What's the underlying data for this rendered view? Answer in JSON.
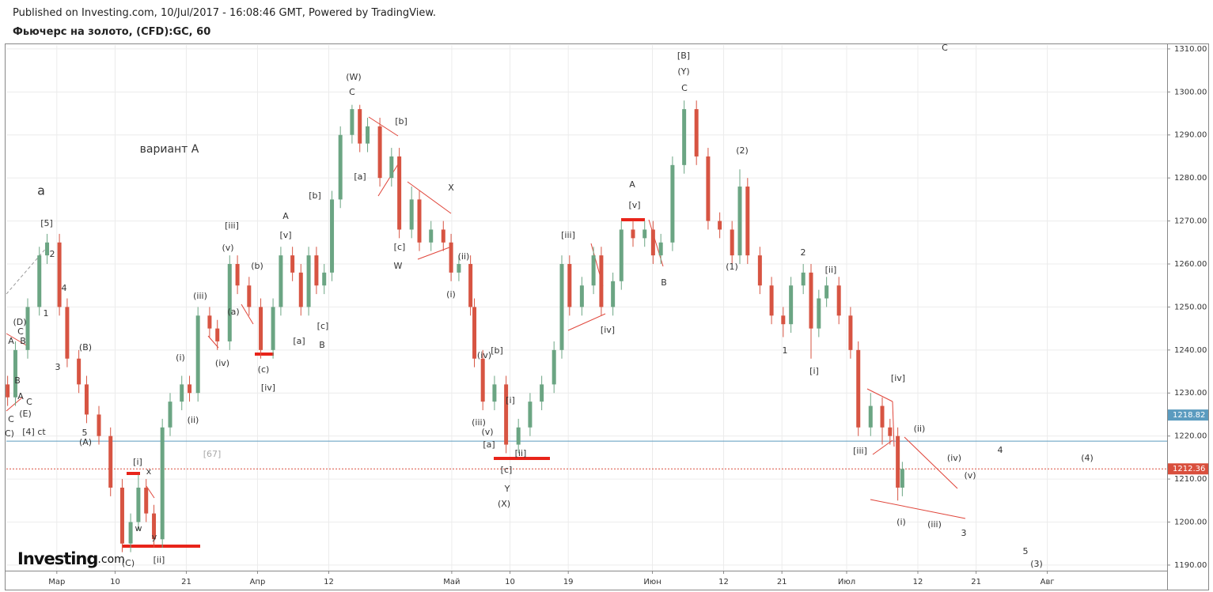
{
  "header": {
    "published": "Published on Investing.com, 10/Jul/2017 - 16:08:46 GMT, Powered by TradingView.",
    "symbol": "Фьючерс на золото, (CFD):GC, 60"
  },
  "logo": {
    "main": "Investing",
    "suffix": ".com"
  },
  "chart_data": {
    "type": "candlestick",
    "up_color": "#6ba583",
    "down_color": "#d75442",
    "grid": true,
    "xlim": [
      -7.8,
      171.5
    ],
    "xticks": [
      {
        "value": 0,
        "label": "Мар"
      },
      {
        "value": 9,
        "label": "10"
      },
      {
        "value": 20,
        "label": "21"
      },
      {
        "value": 31,
        "label": "Апр"
      },
      {
        "value": 42,
        "label": "12"
      },
      {
        "value": 61,
        "label": "Май"
      },
      {
        "value": 70,
        "label": "10"
      },
      {
        "value": 79,
        "label": "19"
      },
      {
        "value": 92,
        "label": "Июн"
      },
      {
        "value": 103,
        "label": "12"
      },
      {
        "value": 112,
        "label": "21"
      },
      {
        "value": 122,
        "label": "Июл"
      },
      {
        "value": 133,
        "label": "12"
      },
      {
        "value": 142,
        "label": "21"
      },
      {
        "value": 153,
        "label": "Авг"
      }
    ],
    "ylim": [
      1188.7,
      1310.9
    ],
    "yticks": [
      {
        "value": 1190,
        "label": "1190.00"
      },
      {
        "value": 1200,
        "label": "1200.00"
      },
      {
        "value": 1210,
        "label": "1210.00"
      },
      {
        "value": 1220,
        "label": "1220.00"
      },
      {
        "value": 1230,
        "label": "1230.00"
      },
      {
        "value": 1240,
        "label": "1240.00"
      },
      {
        "value": 1250,
        "label": "1250.00"
      },
      {
        "value": 1260,
        "label": "1260.00"
      },
      {
        "value": 1270,
        "label": "1270.00"
      },
      {
        "value": 1280,
        "label": "1280.00"
      },
      {
        "value": 1290,
        "label": "1290.00"
      },
      {
        "value": 1300,
        "label": "1300.00"
      },
      {
        "value": 1310,
        "label": "1310.00"
      }
    ],
    "x": [
      -7.6,
      -6.4,
      -4.5,
      -2.7,
      -1.5,
      0.4,
      1.6,
      3.4,
      4.6,
      6.5,
      8.3,
      10.1,
      11.4,
      12.6,
      13.8,
      15.0,
      16.3,
      17.5,
      19.3,
      20.5,
      21.8,
      23.6,
      24.8,
      26.7,
      27.9,
      29.7,
      31.5,
      33.4,
      34.6,
      36.4,
      37.7,
      38.9,
      40.1,
      41.3,
      42.5,
      43.8,
      45.6,
      46.8,
      48.0,
      49.9,
      51.7,
      52.9,
      54.8,
      56.0,
      57.8,
      59.7,
      60.9,
      62.1,
      63.9,
      64.5,
      65.8,
      67.6,
      69.4,
      71.3,
      73.1,
      74.9,
      76.8,
      78.0,
      79.2,
      81.1,
      82.9,
      84.1,
      85.9,
      87.2,
      89.0,
      90.8,
      92.1,
      93.3,
      95.1,
      96.9,
      98.8,
      100.6,
      102.4,
      104.3,
      105.5,
      106.7,
      108.6,
      110.4,
      112.2,
      113.4,
      115.3,
      116.5,
      117.7,
      118.9,
      120.8,
      122.6,
      123.8,
      125.7,
      127.5,
      128.7,
      129.9,
      130.6
    ],
    "open": [
      1232,
      1229,
      1240,
      1250,
      1262,
      1265,
      1250,
      1238,
      1232,
      1225,
      1220,
      1208,
      1195,
      1200,
      1208,
      1202,
      1196,
      1222,
      1228,
      1232,
      1230,
      1248,
      1245,
      1242,
      1260,
      1255,
      1250,
      1240,
      1250,
      1262,
      1258,
      1250,
      1262,
      1255,
      1258,
      1275,
      1290,
      1296,
      1288,
      1292,
      1280,
      1285,
      1268,
      1275,
      1265,
      1268,
      1265,
      1258,
      1260,
      1250,
      1238,
      1228,
      1232,
      1218,
      1222,
      1228,
      1232,
      1240,
      1260,
      1250,
      1255,
      1262,
      1250,
      1256,
      1268,
      1266,
      1268,
      1262,
      1265,
      1283,
      1296,
      1285,
      1270,
      1268,
      1262,
      1278,
      1262,
      1255,
      1248,
      1246,
      1255,
      1258,
      1245,
      1252,
      1255,
      1248,
      1240,
      1222,
      1227,
      1222,
      1220,
      1208
    ],
    "high": [
      1234,
      1242,
      1252,
      1264,
      1267,
      1267,
      1252,
      1240,
      1234,
      1227,
      1222,
      1210,
      1202,
      1211,
      1210,
      1204,
      1224,
      1230,
      1234,
      1234,
      1250,
      1250,
      1247,
      1262,
      1262,
      1257,
      1252,
      1252,
      1264,
      1264,
      1260,
      1264,
      1264,
      1260,
      1277,
      1292,
      1297,
      1297,
      1294,
      1294,
      1287,
      1287,
      1278,
      1277,
      1270,
      1270,
      1267,
      1262,
      1262,
      1252,
      1240,
      1234,
      1234,
      1224,
      1230,
      1234,
      1242,
      1262,
      1262,
      1257,
      1264,
      1264,
      1258,
      1270,
      1270,
      1270,
      1270,
      1267,
      1285,
      1298,
      1298,
      1287,
      1272,
      1270,
      1282,
      1280,
      1264,
      1257,
      1250,
      1257,
      1260,
      1260,
      1254,
      1257,
      1257,
      1250,
      1242,
      1230,
      1229,
      1224,
      1222,
      1214
    ],
    "low": [
      1227,
      1227,
      1238,
      1248,
      1260,
      1248,
      1236,
      1230,
      1223,
      1218,
      1206,
      1193,
      1193,
      1198,
      1200,
      1194,
      1194,
      1220,
      1226,
      1228,
      1228,
      1243,
      1240,
      1240,
      1253,
      1248,
      1238,
      1238,
      1248,
      1256,
      1248,
      1248,
      1253,
      1253,
      1256,
      1273,
      1288,
      1286,
      1286,
      1278,
      1278,
      1266,
      1266,
      1263,
      1263,
      1263,
      1256,
      1256,
      1248,
      1236,
      1226,
      1226,
      1216,
      1216,
      1220,
      1226,
      1230,
      1238,
      1248,
      1248,
      1253,
      1248,
      1248,
      1254,
      1264,
      1264,
      1260,
      1260,
      1263,
      1281,
      1283,
      1268,
      1266,
      1260,
      1260,
      1260,
      1253,
      1246,
      1243,
      1244,
      1253,
      1238,
      1243,
      1250,
      1246,
      1238,
      1220,
      1220,
      1218,
      1218,
      1205,
      1206
    ],
    "close": [
      1229,
      1240,
      1250,
      1262,
      1265,
      1250,
      1238,
      1232,
      1225,
      1220,
      1208,
      1195,
      1200,
      1208,
      1202,
      1196,
      1222,
      1228,
      1232,
      1230,
      1248,
      1245,
      1242,
      1260,
      1255,
      1250,
      1240,
      1250,
      1262,
      1258,
      1250,
      1262,
      1255,
      1258,
      1275,
      1290,
      1296,
      1288,
      1292,
      1280,
      1285,
      1268,
      1275,
      1265,
      1268,
      1265,
      1258,
      1260,
      1250,
      1238,
      1228,
      1232,
      1218,
      1222,
      1228,
      1232,
      1240,
      1260,
      1250,
      1255,
      1262,
      1250,
      1256,
      1268,
      1266,
      1268,
      1262,
      1265,
      1283,
      1296,
      1285,
      1270,
      1268,
      1262,
      1278,
      1262,
      1255,
      1248,
      1246,
      1255,
      1258,
      1245,
      1252,
      1255,
      1248,
      1240,
      1222,
      1227,
      1222,
      1220,
      1208,
      1212.36
    ],
    "price_lines": [
      {
        "value": 1218.82,
        "label": "1218.82",
        "color": "#5b9bbf"
      },
      {
        "value": 1212.36,
        "label": "1212.36",
        "color": "#d94f3d"
      }
    ],
    "annotations": [
      "[5]",
      "2",
      "4",
      "1",
      "3",
      "(B)",
      "5",
      "(A)",
      "(D)",
      "C",
      "A",
      "B",
      "B",
      "A",
      "C",
      "(E)",
      "C",
      "C)",
      "[4] ct",
      "a",
      "вариант А",
      "[i]",
      "x",
      "w",
      "y",
      "(C)",
      "[ii]",
      "[67]",
      "(i)",
      "(ii)",
      "(iii)",
      "[iii]",
      "(v)",
      "(a)",
      "(b)",
      "(iv)",
      "(c)",
      "[iv]",
      "A",
      "[v]",
      "[b]",
      "[c]",
      "[a]",
      "B",
      "(W)",
      "C",
      "[a]",
      "[b]",
      "X",
      "[c]",
      "W",
      "(ii)",
      "(i)",
      "(iv)",
      "[b]",
      "[i]",
      "(iii)",
      "(v)",
      "[a]",
      "[ii]",
      "[c]",
      "Y",
      "(X)",
      "[iii]",
      "[iv]",
      "A",
      "[v]",
      "B",
      "[B]",
      "(Y)",
      "C",
      "(2)",
      "(1)",
      "1",
      "2",
      "[ii]",
      "[i]",
      "[iv]",
      "[iii]",
      "(ii)",
      "(i)",
      "(iii)",
      "(iv)",
      "(v)",
      "3",
      "4",
      "(4)",
      "5",
      "(3)",
      "C"
    ]
  }
}
